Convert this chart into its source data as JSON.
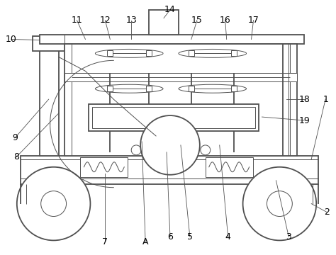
{
  "bg_color": "#ffffff",
  "line_color": "#505050",
  "lw_main": 1.3,
  "lw_thin": 0.7,
  "figsize": [
    4.74,
    3.6
  ],
  "dpi": 100
}
